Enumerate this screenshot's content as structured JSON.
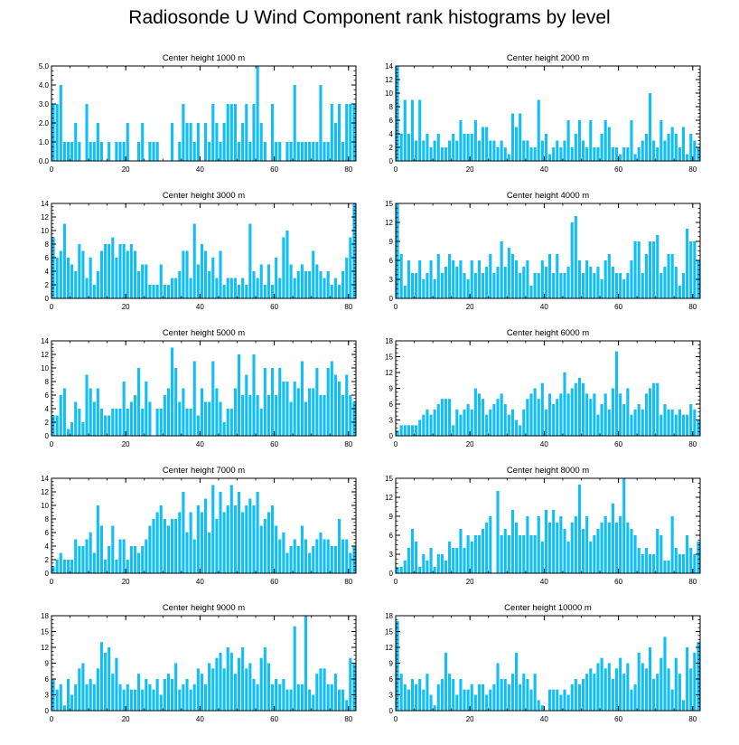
{
  "title": "Radiosonde U Wind Component rank histograms by level",
  "bar_color": "#12BEF6",
  "chart_data": [
    {
      "type": "bar",
      "title": "Center height 1000 m",
      "xlim": [
        0,
        82
      ],
      "ylim": [
        0,
        5
      ],
      "xticks": [
        0,
        20,
        40,
        60,
        80
      ],
      "yticks": [
        0,
        1,
        2,
        3,
        4,
        5
      ],
      "ytick_labels": [
        "0.0",
        "1.0",
        "2.0",
        "3.0",
        "4.0",
        "5.0"
      ],
      "values": [
        3,
        3,
        4,
        1,
        1,
        1,
        2,
        1,
        0,
        3,
        1,
        1,
        2,
        1,
        0,
        1,
        0,
        1,
        1,
        1,
        2,
        0,
        0,
        1,
        2,
        0,
        1,
        1,
        1,
        0,
        0,
        0,
        2,
        0,
        1,
        3,
        2,
        2,
        1,
        2,
        0,
        2,
        1,
        3,
        2,
        1,
        2,
        3,
        3,
        3,
        1,
        2,
        3,
        1,
        3,
        5,
        2,
        1,
        0,
        3,
        1,
        1,
        0,
        1,
        1,
        4,
        1,
        1,
        1,
        1,
        1,
        1,
        4,
        1,
        1,
        3,
        2,
        3,
        1,
        3,
        3,
        3
      ]
    },
    {
      "type": "bar",
      "title": "Center height 2000 m",
      "xlim": [
        0,
        82
      ],
      "ylim": [
        0,
        14
      ],
      "xticks": [
        0,
        20,
        40,
        60,
        80
      ],
      "yticks": [
        0,
        2,
        4,
        6,
        8,
        10,
        12,
        14
      ],
      "ytick_labels": [
        "0",
        "2",
        "4",
        "6",
        "8",
        "10",
        "12",
        "14"
      ],
      "values": [
        14,
        4,
        9,
        4,
        9,
        3,
        9,
        3,
        4,
        2,
        3,
        4,
        2,
        2,
        3,
        4,
        3,
        6,
        4,
        4,
        4,
        6,
        3,
        5,
        5,
        3,
        3,
        2,
        3,
        2,
        1,
        7,
        5,
        7,
        3,
        3,
        2,
        2,
        9,
        3,
        4,
        1,
        2,
        3,
        2,
        3,
        6,
        2,
        4,
        6,
        3,
        2,
        6,
        2,
        2,
        4,
        6,
        5,
        2,
        2,
        1,
        2,
        2,
        6,
        1,
        2,
        3,
        4,
        10,
        3,
        2,
        6,
        3,
        4,
        5,
        4,
        2,
        5,
        1,
        4,
        3,
        2
      ]
    },
    {
      "type": "bar",
      "title": "Center height 3000 m",
      "xlim": [
        0,
        82
      ],
      "ylim": [
        0,
        14
      ],
      "xticks": [
        0,
        20,
        40,
        60,
        80
      ],
      "yticks": [
        0,
        2,
        4,
        6,
        8,
        10,
        12,
        14
      ],
      "ytick_labels": [
        "0",
        "2",
        "4",
        "6",
        "8",
        "10",
        "12",
        "14"
      ],
      "values": [
        9,
        6,
        7,
        11,
        6,
        5,
        4,
        8,
        7,
        3,
        6,
        2,
        4,
        7,
        8,
        8,
        9,
        6,
        8,
        8,
        7,
        8,
        7,
        4,
        5,
        5,
        2,
        2,
        2,
        5,
        2,
        2,
        3,
        3,
        4,
        7,
        7,
        3,
        11,
        5,
        8,
        7,
        4,
        6,
        3,
        7,
        2,
        3,
        3,
        3,
        2,
        3,
        2,
        11,
        4,
        3,
        5,
        2,
        5,
        2,
        6,
        3,
        9,
        10,
        5,
        3,
        4,
        5,
        4,
        4,
        7,
        5,
        4,
        3,
        4,
        2,
        3,
        2,
        4,
        6,
        9,
        14
      ]
    },
    {
      "type": "bar",
      "title": "Center height 4000 m",
      "xlim": [
        0,
        82
      ],
      "ylim": [
        0,
        15
      ],
      "xticks": [
        0,
        20,
        40,
        60,
        80
      ],
      "yticks": [
        0,
        3,
        6,
        9,
        12,
        15
      ],
      "ytick_labels": [
        "0",
        "3",
        "6",
        "9",
        "12",
        "15"
      ],
      "values": [
        15,
        7,
        2,
        6,
        4,
        4,
        6,
        3,
        4,
        6,
        3,
        7,
        4,
        5,
        7,
        6,
        5,
        6,
        4,
        3,
        6,
        4,
        6,
        4,
        5,
        7,
        4,
        5,
        9,
        5,
        8,
        7,
        6,
        4,
        5,
        6,
        2,
        4,
        4,
        6,
        5,
        7,
        4,
        7,
        4,
        4,
        5,
        12,
        13,
        6,
        4,
        6,
        5,
        4,
        5,
        3,
        6,
        7,
        5,
        4,
        4,
        3,
        4,
        6,
        9,
        9,
        4,
        7,
        9,
        9,
        10,
        4,
        5,
        7,
        7,
        5,
        2,
        4,
        11,
        9,
        9,
        6
      ]
    },
    {
      "type": "bar",
      "title": "Center height 5000 m",
      "xlim": [
        0,
        82
      ],
      "ylim": [
        0,
        14
      ],
      "xticks": [
        0,
        20,
        40,
        60,
        80
      ],
      "yticks": [
        0,
        2,
        4,
        6,
        8,
        10,
        12,
        14
      ],
      "ytick_labels": [
        "0",
        "2",
        "4",
        "6",
        "8",
        "10",
        "12",
        "14"
      ],
      "values": [
        3,
        3,
        6,
        7,
        1,
        2,
        5,
        4,
        2,
        9,
        7,
        5,
        7,
        4,
        3,
        3,
        4,
        4,
        4,
        8,
        4,
        5,
        6,
        10,
        4,
        8,
        5,
        0,
        4,
        4,
        6,
        7,
        13,
        10,
        5,
        7,
        4,
        4,
        11,
        3,
        7,
        5,
        5,
        11,
        7,
        5,
        2,
        4,
        4,
        7,
        12,
        6,
        9,
        6,
        12,
        6,
        4,
        10,
        6,
        10,
        6,
        10,
        8,
        8,
        5,
        8,
        7,
        11,
        5,
        7,
        7,
        10,
        6,
        6,
        10,
        11,
        9,
        8,
        6,
        9,
        6,
        5
      ]
    },
    {
      "type": "bar",
      "title": "Center height 6000 m",
      "xlim": [
        0,
        82
      ],
      "ylim": [
        0,
        18
      ],
      "xticks": [
        0,
        20,
        40,
        60,
        80
      ],
      "yticks": [
        0,
        3,
        6,
        9,
        12,
        15,
        18
      ],
      "ytick_labels": [
        "0",
        "3",
        "6",
        "9",
        "12",
        "15",
        "18"
      ],
      "values": [
        1,
        2,
        2,
        2,
        2,
        2,
        3,
        4,
        5,
        4,
        5,
        6,
        7,
        7,
        7,
        2,
        5,
        4,
        5,
        6,
        5,
        9,
        8,
        7,
        4,
        5,
        6,
        7,
        8,
        6,
        4,
        5,
        3,
        2,
        5,
        7,
        8,
        9,
        7,
        10,
        5,
        8,
        6,
        7,
        8,
        12,
        8,
        9,
        10,
        11,
        10,
        8,
        7,
        8,
        4,
        6,
        8,
        5,
        9,
        16,
        8,
        6,
        9,
        4,
        5,
        6,
        5,
        8,
        9,
        10,
        10,
        4,
        6,
        5,
        5,
        4,
        5,
        4,
        4,
        6,
        5,
        3
      ]
    },
    {
      "type": "bar",
      "title": "Center height 7000 m",
      "xlim": [
        0,
        82
      ],
      "ylim": [
        0,
        14
      ],
      "xticks": [
        0,
        20,
        40,
        60,
        80
      ],
      "yticks": [
        0,
        2,
        4,
        6,
        8,
        10,
        12,
        14
      ],
      "ytick_labels": [
        "0",
        "2",
        "4",
        "6",
        "8",
        "10",
        "12",
        "14"
      ],
      "values": [
        1,
        2,
        3,
        2,
        2,
        2,
        5,
        4,
        4,
        5,
        6,
        3,
        10,
        7,
        2,
        4,
        7,
        2,
        5,
        5,
        2,
        4,
        4,
        3,
        4,
        5,
        7,
        8,
        9,
        10,
        8,
        7,
        8,
        8,
        9,
        12,
        6,
        9,
        5,
        10,
        9,
        11,
        6,
        13,
        8,
        12,
        9,
        10,
        13,
        10,
        12,
        9,
        10,
        11,
        10,
        12,
        7,
        8,
        9,
        10,
        7,
        5,
        6,
        3,
        4,
        5,
        4,
        7,
        5,
        3,
        4,
        5,
        6,
        5,
        5,
        4,
        4,
        8,
        5,
        5,
        3,
        4
      ]
    },
    {
      "type": "bar",
      "title": "Center height 8000 m",
      "xlim": [
        0,
        82
      ],
      "ylim": [
        0,
        15
      ],
      "xticks": [
        0,
        20,
        40,
        60,
        80
      ],
      "yticks": [
        0,
        3,
        6,
        9,
        12,
        15
      ],
      "ytick_labels": [
        "0",
        "3",
        "6",
        "9",
        "12",
        "15"
      ],
      "values": [
        1,
        1,
        2,
        4,
        7,
        5,
        1,
        3,
        2,
        4,
        1,
        3,
        3,
        2,
        5,
        4,
        4,
        7,
        4,
        6,
        5,
        6,
        6,
        7,
        8,
        9,
        0,
        13,
        6,
        7,
        6,
        10,
        8,
        6,
        6,
        9,
        6,
        6,
        9,
        5,
        10,
        8,
        10,
        8,
        9,
        7,
        5,
        8,
        9,
        14,
        7,
        9,
        5,
        6,
        7,
        8,
        9,
        8,
        11,
        8,
        9,
        15,
        8,
        7,
        6,
        4,
        3,
        4,
        3,
        3,
        7,
        6,
        2,
        2,
        9,
        4,
        3,
        3,
        6,
        4,
        3,
        5
      ]
    },
    {
      "type": "bar",
      "title": "Center height 9000 m",
      "xlim": [
        0,
        82
      ],
      "ylim": [
        0,
        18
      ],
      "xticks": [
        0,
        20,
        40,
        60,
        80
      ],
      "yticks": [
        0,
        3,
        6,
        9,
        12,
        15,
        18
      ],
      "ytick_labels": [
        "0",
        "3",
        "6",
        "9",
        "12",
        "15",
        "18"
      ],
      "values": [
        6,
        4,
        5,
        1,
        6,
        3,
        5,
        8,
        9,
        5,
        6,
        5,
        8,
        13,
        11,
        12,
        7,
        10,
        5,
        4,
        5,
        4,
        4,
        7,
        4,
        6,
        5,
        4,
        6,
        3,
        6,
        7,
        6,
        9,
        4,
        5,
        6,
        4,
        5,
        8,
        7,
        5,
        9,
        8,
        10,
        11,
        8,
        12,
        11,
        7,
        10,
        12,
        8,
        9,
        6,
        5,
        10,
        12,
        9,
        5,
        6,
        5,
        6,
        4,
        4,
        16,
        5,
        5,
        18,
        4,
        3,
        7,
        8,
        8,
        5,
        5,
        7,
        4,
        4,
        2,
        10,
        9
      ]
    },
    {
      "type": "bar",
      "title": "Center height 10000 m",
      "xlim": [
        0,
        82
      ],
      "ylim": [
        0,
        18
      ],
      "xticks": [
        0,
        20,
        40,
        60,
        80
      ],
      "yticks": [
        0,
        3,
        6,
        9,
        12,
        15,
        18
      ],
      "ytick_labels": [
        "0",
        "3",
        "6",
        "9",
        "12",
        "15",
        "18"
      ],
      "values": [
        17,
        7,
        5,
        4,
        6,
        5,
        6,
        4,
        7,
        3,
        1,
        5,
        6,
        11,
        7,
        6,
        3,
        6,
        4,
        4,
        5,
        3,
        5,
        5,
        3,
        4,
        5,
        9,
        6,
        6,
        5,
        7,
        11,
        5,
        7,
        6,
        4,
        7,
        2,
        1,
        0,
        4,
        4,
        4,
        3,
        4,
        3,
        5,
        6,
        5,
        6,
        7,
        8,
        7,
        9,
        10,
        8,
        9,
        6,
        8,
        10,
        7,
        9,
        4,
        5,
        11,
        9,
        8,
        12,
        6,
        7,
        10,
        14,
        8,
        4,
        10,
        7,
        2,
        12,
        8,
        11,
        13
      ]
    }
  ]
}
